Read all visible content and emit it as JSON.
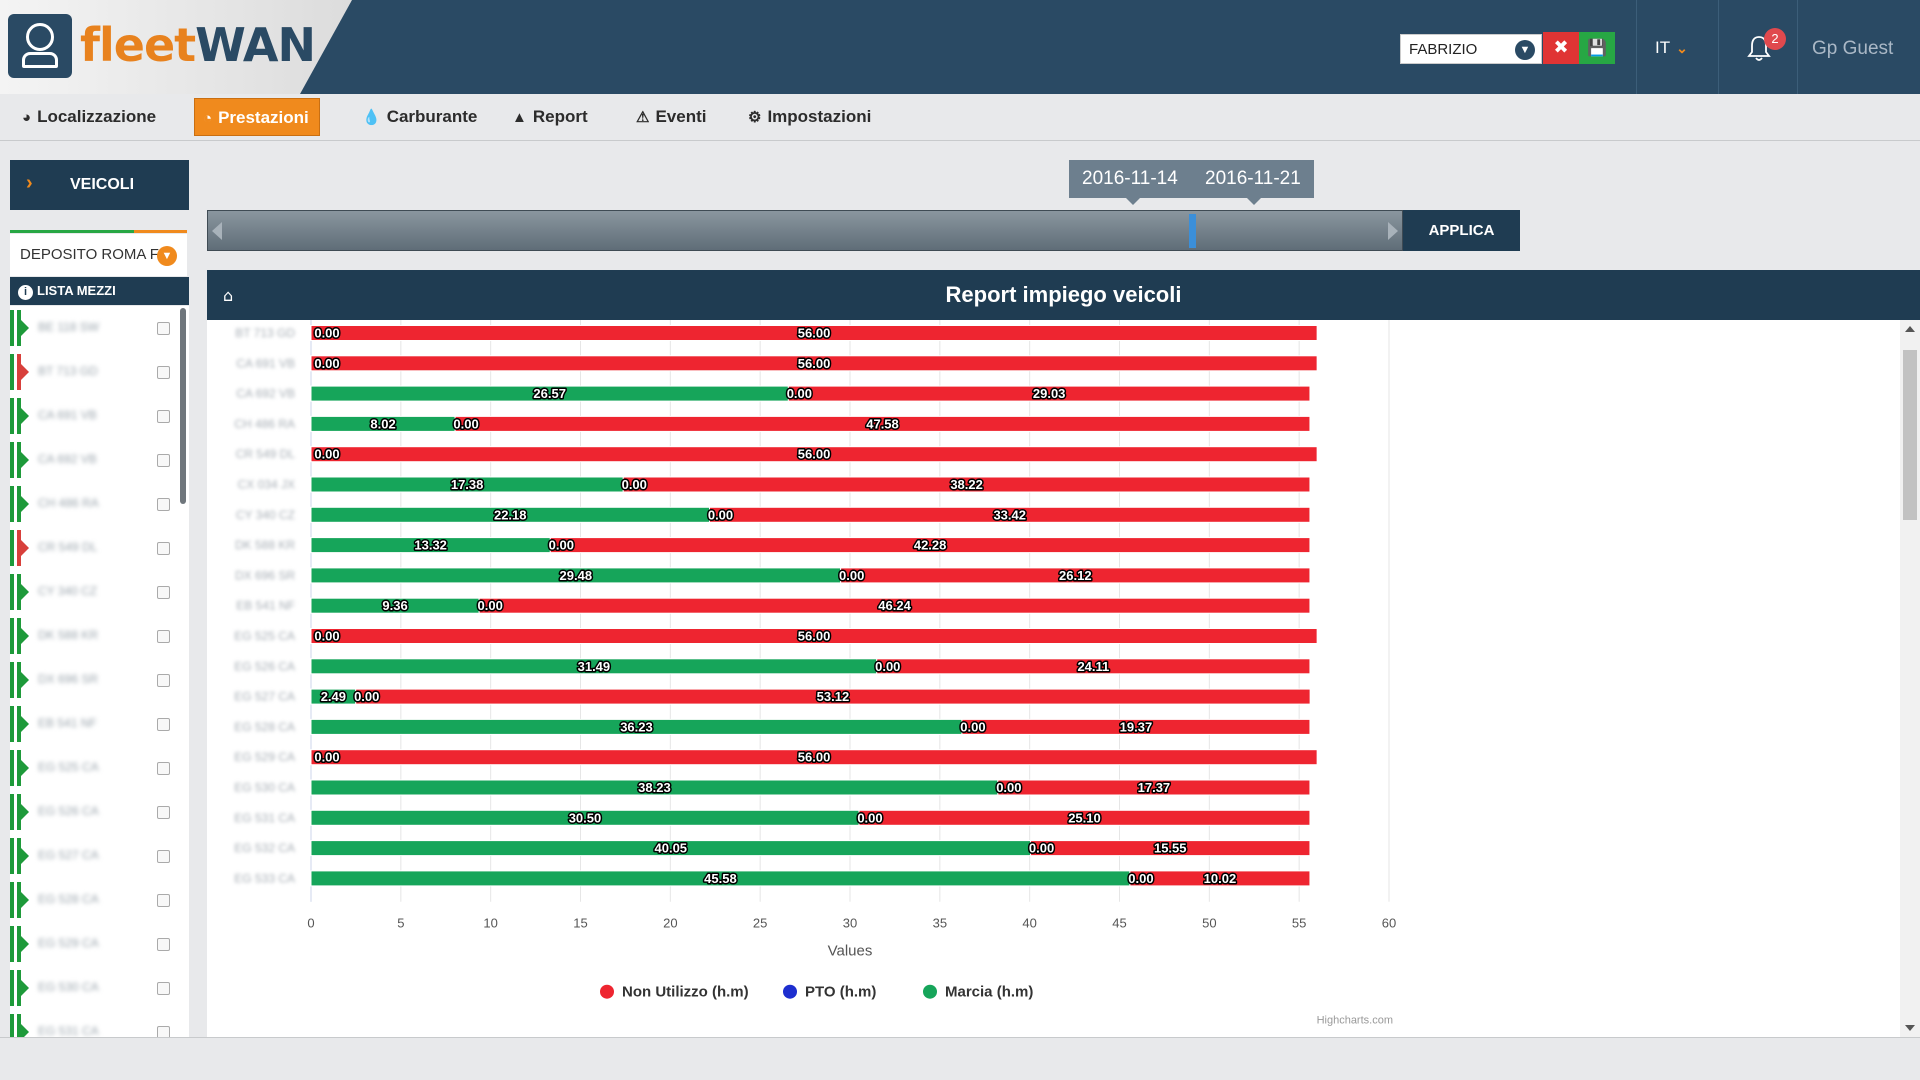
{
  "header": {
    "logo_part1": "fleet",
    "logo_part2": "WAN",
    "user_select_value": "FABRIZIO",
    "language": "IT",
    "notifications_count": "2",
    "user_name": "Gp Guest",
    "colors": {
      "header_bg": "#2a4a64",
      "accent": "#f08a1d",
      "delete": "#e03434",
      "save": "#27a744"
    }
  },
  "nav": {
    "items": [
      {
        "label": "Localizzazione",
        "icon": "dashboard-icon"
      },
      {
        "label": "Prestazioni",
        "icon": "pie-chart-icon",
        "active": true
      },
      {
        "label": "Carburante",
        "icon": "fuel-drop-icon"
      },
      {
        "label": "Report",
        "icon": "area-chart-icon"
      },
      {
        "label": "Eventi",
        "icon": "bell-icon"
      },
      {
        "label": "Impostazioni",
        "icon": "gear-icon"
      }
    ]
  },
  "sidebar": {
    "veicoli_label": "VEICOLI",
    "deposito_value": "DEPOSITO ROMA F",
    "lista_label": "LISTA MEZZI",
    "vehicles": [
      {
        "name": "BE 118 SW",
        "status": "green"
      },
      {
        "name": "BT 713 GD",
        "status": "red"
      },
      {
        "name": "CA 691 VB",
        "status": "green"
      },
      {
        "name": "CA 692 VB",
        "status": "green"
      },
      {
        "name": "CH 486 RA",
        "status": "green"
      },
      {
        "name": "CR 549 DL",
        "status": "red"
      },
      {
        "name": "CY 340 CZ",
        "status": "green"
      },
      {
        "name": "DK 588 KR",
        "status": "green"
      },
      {
        "name": "DX 696 SR",
        "status": "green"
      },
      {
        "name": "EB 541 NF",
        "status": "green"
      },
      {
        "name": "EG 525 CA",
        "status": "green"
      },
      {
        "name": "EG 526 CA",
        "status": "green"
      },
      {
        "name": "EG 527 CA",
        "status": "green"
      },
      {
        "name": "EG 528 CA",
        "status": "green"
      },
      {
        "name": "EG 529 CA",
        "status": "green"
      },
      {
        "name": "EG 530 CA",
        "status": "green"
      },
      {
        "name": "EG 531 CA",
        "status": "green"
      }
    ]
  },
  "timeline": {
    "date_from": "2016-11-14",
    "date_to": "2016-11-21",
    "apply_label": "APPLICA"
  },
  "report": {
    "title": "Report impiego veicoli",
    "credit": "Highcharts.com"
  },
  "chart_data": {
    "type": "bar",
    "stacked": true,
    "orientation": "horizontal",
    "title": "Report impiego veicoli",
    "xlabel": "Values",
    "xlim": [
      0,
      60
    ],
    "xticks": [
      0,
      5,
      10,
      15,
      20,
      25,
      30,
      35,
      40,
      45,
      50,
      55,
      60
    ],
    "categories": [
      "BT 713 GD",
      "CA 691 VB",
      "CA 692 VB",
      "CH 486 RA",
      "CR 549 DL",
      "CX 034 JX",
      "CY 340 CZ",
      "DK 588 KR",
      "DX 696 SR",
      "EB 541 NF",
      "EG 525 CA",
      "EG 526 CA",
      "EG 527 CA",
      "EG 528 CA",
      "EG 529 CA",
      "EG 530 CA",
      "EG 531 CA",
      "EG 532 CA",
      "EG 533 CA"
    ],
    "series": [
      {
        "name": "Non Utilizzo (h.m)",
        "color": "#ee2530",
        "values": [
          56.0,
          56.0,
          29.03,
          47.58,
          56.0,
          38.22,
          33.42,
          42.28,
          26.12,
          46.24,
          56.0,
          24.11,
          53.12,
          19.37,
          56.0,
          17.37,
          25.1,
          15.55,
          10.02
        ]
      },
      {
        "name": "PTO (h.m)",
        "color": "#1d2ecf",
        "values": [
          0.0,
          0.0,
          0.0,
          0.0,
          0.0,
          0.0,
          0.0,
          0.0,
          0.0,
          0.0,
          0.0,
          0.0,
          0.0,
          0.0,
          0.0,
          0.0,
          0.0,
          0.0,
          0.0
        ]
      },
      {
        "name": "Marcia (h.m)",
        "color": "#16a55a",
        "values": [
          0.0,
          0.0,
          26.57,
          8.02,
          0.0,
          17.38,
          22.18,
          13.32,
          29.48,
          9.36,
          0.0,
          31.49,
          2.49,
          36.23,
          0.0,
          38.23,
          30.5,
          40.05,
          45.58
        ]
      }
    ],
    "legend_position": "bottom-center",
    "grid": true
  }
}
